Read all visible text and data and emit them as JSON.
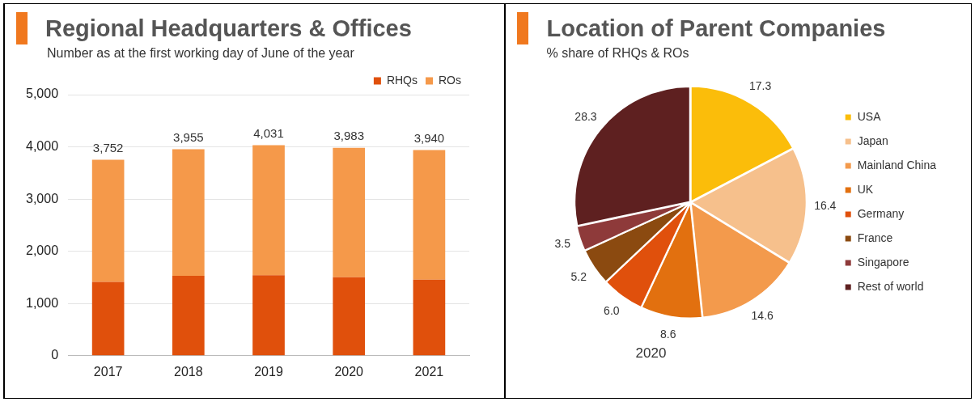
{
  "chart_data": [
    {
      "type": "bar",
      "title": "Regional Headquarters & Offices",
      "subtitle": "Number as at the first working day of June of the year",
      "categories": [
        "2017",
        "2018",
        "2019",
        "2020",
        "2021"
      ],
      "series": [
        {
          "name": "RHQs",
          "color": "#e0500c",
          "values": [
            1413,
            1530,
            1541,
            1504,
            1457
          ]
        },
        {
          "name": "ROs",
          "color": "#f5994a",
          "values": [
            2339,
            2425,
            2490,
            2479,
            2483
          ]
        }
      ],
      "stacked": true,
      "totals": [
        "3,752",
        "3,955",
        "4,031",
        "3,983",
        "3,940"
      ],
      "ylim": [
        0,
        5000
      ],
      "yticks": [
        {
          "value": 0,
          "label": "0"
        },
        {
          "value": 1000,
          "label": "1,000"
        },
        {
          "value": 2000,
          "label": "2,000"
        },
        {
          "value": 3000,
          "label": "3,000"
        },
        {
          "value": 4000,
          "label": "4,000"
        },
        {
          "value": 5000,
          "label": "5,000"
        }
      ],
      "grid": "y",
      "legend": "top right"
    },
    {
      "type": "pie",
      "title": "Location of Parent Companies",
      "subtitle": "% share of RHQs & ROs",
      "categories": [
        "USA",
        "Japan",
        "Mainland China",
        "UK",
        "Germany",
        "France",
        "Singapore",
        "Rest of world"
      ],
      "values": [
        17.3,
        16.4,
        14.6,
        8.6,
        6.0,
        5.2,
        3.5,
        28.3
      ],
      "colors": [
        "#fbbd0a",
        "#f6c08c",
        "#f39a4c",
        "#e2700f",
        "#e0500c",
        "#8b4a10",
        "#8e3a3a",
        "#5e2020"
      ],
      "value_labels": [
        "17.3",
        "16.4",
        "14.6",
        "8.6",
        "6.0",
        "5.2",
        "3.5",
        "28.3"
      ],
      "annotations": [
        "2020"
      ],
      "legend": "right"
    }
  ]
}
